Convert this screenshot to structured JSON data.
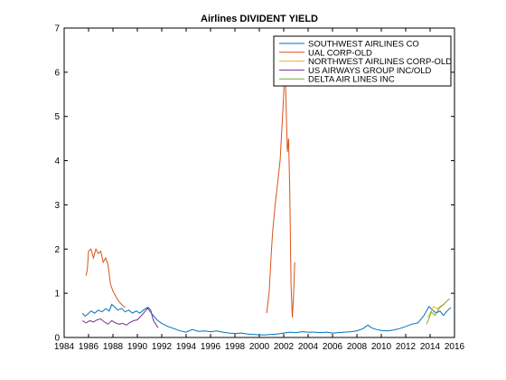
{
  "chart_data": {
    "type": "line",
    "title": "Airlines DIVIDENT YIELD",
    "xlabel": "",
    "ylabel": "",
    "xlim": [
      1984,
      2016
    ],
    "ylim": [
      0,
      7
    ],
    "xticks": [
      1984,
      1986,
      1988,
      1990,
      1992,
      1994,
      1996,
      1998,
      2000,
      2002,
      2004,
      2006,
      2008,
      2010,
      2012,
      2014,
      2016
    ],
    "yticks": [
      0,
      1,
      2,
      3,
      4,
      5,
      6,
      7
    ],
    "grid": false,
    "legend_position": "top-right",
    "series": [
      {
        "name": "SOUTHWEST AIRLINES CO",
        "color": "#0072bd",
        "points": [
          [
            1985.5,
            0.55
          ],
          [
            1985.7,
            0.48
          ],
          [
            1985.9,
            0.52
          ],
          [
            1986.2,
            0.6
          ],
          [
            1986.5,
            0.55
          ],
          [
            1986.8,
            0.62
          ],
          [
            1987.1,
            0.58
          ],
          [
            1987.4,
            0.65
          ],
          [
            1987.7,
            0.6
          ],
          [
            1987.9,
            0.75
          ],
          [
            1988.1,
            0.7
          ],
          [
            1988.4,
            0.62
          ],
          [
            1988.7,
            0.66
          ],
          [
            1989.0,
            0.58
          ],
          [
            1989.3,
            0.62
          ],
          [
            1989.6,
            0.55
          ],
          [
            1989.9,
            0.6
          ],
          [
            1990.2,
            0.55
          ],
          [
            1990.5,
            0.62
          ],
          [
            1990.8,
            0.68
          ],
          [
            1991.0,
            0.6
          ],
          [
            1991.3,
            0.5
          ],
          [
            1991.6,
            0.4
          ],
          [
            1992.0,
            0.32
          ],
          [
            1992.5,
            0.25
          ],
          [
            1993.0,
            0.2
          ],
          [
            1993.5,
            0.15
          ],
          [
            1994.0,
            0.12
          ],
          [
            1994.5,
            0.18
          ],
          [
            1995.0,
            0.14
          ],
          [
            1995.5,
            0.15
          ],
          [
            1996.0,
            0.13
          ],
          [
            1996.5,
            0.15
          ],
          [
            1997.0,
            0.12
          ],
          [
            1997.5,
            0.1
          ],
          [
            1998.0,
            0.09
          ],
          [
            1998.5,
            0.1
          ],
          [
            1999.0,
            0.08
          ],
          [
            1999.5,
            0.07
          ],
          [
            2000.0,
            0.06
          ],
          [
            2000.5,
            0.06
          ],
          [
            2001.0,
            0.07
          ],
          [
            2001.5,
            0.08
          ],
          [
            2002.0,
            0.1
          ],
          [
            2002.5,
            0.12
          ],
          [
            2003.0,
            0.11
          ],
          [
            2003.5,
            0.13
          ],
          [
            2004.0,
            0.12
          ],
          [
            2004.5,
            0.12
          ],
          [
            2005.0,
            0.11
          ],
          [
            2005.5,
            0.12
          ],
          [
            2006.0,
            0.1
          ],
          [
            2006.5,
            0.11
          ],
          [
            2007.0,
            0.12
          ],
          [
            2007.5,
            0.13
          ],
          [
            2008.0,
            0.15
          ],
          [
            2008.5,
            0.2
          ],
          [
            2008.9,
            0.28
          ],
          [
            2009.2,
            0.22
          ],
          [
            2009.6,
            0.18
          ],
          [
            2010.0,
            0.16
          ],
          [
            2010.5,
            0.15
          ],
          [
            2011.0,
            0.17
          ],
          [
            2011.5,
            0.2
          ],
          [
            2012.0,
            0.25
          ],
          [
            2012.5,
            0.3
          ],
          [
            2013.0,
            0.33
          ],
          [
            2013.5,
            0.5
          ],
          [
            2013.9,
            0.7
          ],
          [
            2014.2,
            0.62
          ],
          [
            2014.5,
            0.55
          ],
          [
            2014.8,
            0.6
          ],
          [
            2015.1,
            0.5
          ],
          [
            2015.4,
            0.6
          ],
          [
            2015.7,
            0.68
          ]
        ]
      },
      {
        "name": "UAL CORP-OLD",
        "color": "#d95319",
        "points": [
          [
            1985.8,
            1.4
          ],
          [
            1985.9,
            1.55
          ],
          [
            1986.0,
            1.95
          ],
          [
            1986.2,
            2.0
          ],
          [
            1986.4,
            1.8
          ],
          [
            1986.6,
            2.0
          ],
          [
            1986.8,
            1.9
          ],
          [
            1987.0,
            1.95
          ],
          [
            1987.2,
            1.7
          ],
          [
            1987.4,
            1.8
          ],
          [
            1987.6,
            1.65
          ],
          [
            1987.8,
            1.2
          ],
          [
            1988.0,
            1.05
          ],
          [
            1988.2,
            0.95
          ],
          [
            1988.4,
            0.85
          ],
          [
            1988.6,
            0.78
          ],
          [
            1988.8,
            0.72
          ],
          [
            1989.0,
            0.68
          ],
          [
            2000.6,
            0.55
          ],
          [
            2000.8,
            1.0
          ],
          [
            2001.0,
            2.0
          ],
          [
            2001.1,
            2.4
          ],
          [
            2001.3,
            3.0
          ],
          [
            2001.5,
            3.5
          ],
          [
            2001.7,
            4.0
          ],
          [
            2001.9,
            5.0
          ],
          [
            2002.0,
            5.5
          ],
          [
            2002.1,
            6.3
          ],
          [
            2002.3,
            4.2
          ],
          [
            2002.4,
            4.5
          ],
          [
            2002.5,
            3.2
          ],
          [
            2002.6,
            1.2
          ],
          [
            2002.7,
            0.45
          ],
          [
            2002.8,
            0.9
          ],
          [
            2002.9,
            1.7
          ]
        ]
      },
      {
        "name": "NORTHWEST AIRLINES CORP-OLD",
        "color": "#edb120",
        "points": [
          [
            2013.8,
            0.45
          ],
          [
            2014.0,
            0.55
          ],
          [
            2014.3,
            0.7
          ],
          [
            2014.6,
            0.65
          ],
          [
            2014.9,
            0.72
          ],
          [
            2015.2,
            0.75
          ]
        ]
      },
      {
        "name": "US AIRWAYS GROUP INC/OLD",
        "color": "#7e2f8e",
        "points": [
          [
            1985.5,
            0.38
          ],
          [
            1985.8,
            0.33
          ],
          [
            1986.1,
            0.38
          ],
          [
            1986.4,
            0.35
          ],
          [
            1986.7,
            0.4
          ],
          [
            1987.0,
            0.42
          ],
          [
            1987.3,
            0.35
          ],
          [
            1987.6,
            0.3
          ],
          [
            1987.9,
            0.38
          ],
          [
            1988.2,
            0.33
          ],
          [
            1988.5,
            0.3
          ],
          [
            1988.8,
            0.32
          ],
          [
            1989.1,
            0.28
          ],
          [
            1989.4,
            0.34
          ],
          [
            1989.7,
            0.38
          ],
          [
            1990.0,
            0.4
          ],
          [
            1990.3,
            0.48
          ],
          [
            1990.6,
            0.58
          ],
          [
            1990.9,
            0.68
          ],
          [
            1991.1,
            0.62
          ],
          [
            1991.3,
            0.4
          ],
          [
            1991.5,
            0.3
          ],
          [
            1991.7,
            0.22
          ]
        ]
      },
      {
        "name": "DELTA AIR LINES INC",
        "color": "#77ac30",
        "points": [
          [
            2013.7,
            0.3
          ],
          [
            2013.9,
            0.42
          ],
          [
            2014.1,
            0.58
          ],
          [
            2014.4,
            0.5
          ],
          [
            2014.7,
            0.65
          ],
          [
            2015.0,
            0.72
          ],
          [
            2015.3,
            0.8
          ],
          [
            2015.6,
            0.88
          ]
        ]
      }
    ]
  }
}
